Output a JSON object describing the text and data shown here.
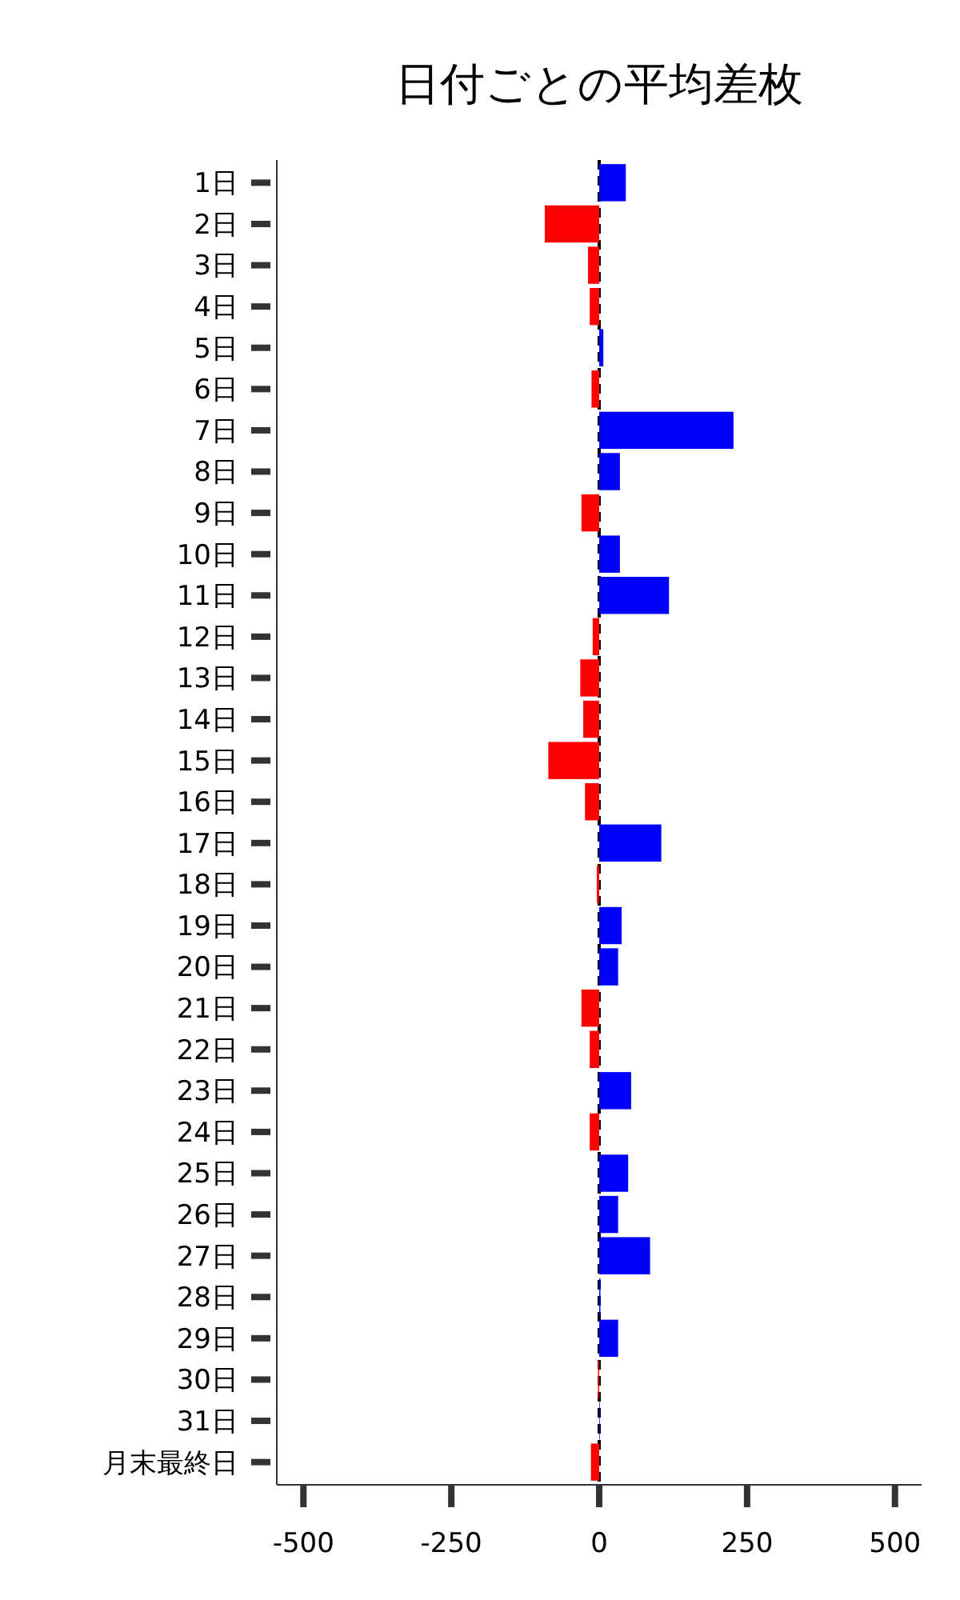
{
  "chart_data": {
    "type": "bar",
    "orientation": "horizontal",
    "title": "日付ごとの平均差枚",
    "categories": [
      "1日",
      "2日",
      "3日",
      "4日",
      "5日",
      "6日",
      "7日",
      "8日",
      "9日",
      "10日",
      "11日",
      "12日",
      "13日",
      "14日",
      "15日",
      "16日",
      "17日",
      "18日",
      "19日",
      "20日",
      "21日",
      "22日",
      "23日",
      "24日",
      "25日",
      "26日",
      "27日",
      "28日",
      "29日",
      "30日",
      "31日",
      "月末最終日"
    ],
    "values": [
      45,
      -92,
      -19,
      -16,
      7,
      -13,
      227,
      35,
      -30,
      35,
      118,
      -11,
      -32,
      -27,
      -86,
      -24,
      105,
      -4,
      38,
      32,
      -30,
      -16,
      54,
      -16,
      49,
      32,
      86,
      2,
      32,
      -2,
      1,
      -14
    ],
    "colors": [
      "#0000ff",
      "#ff0000",
      "#ff0000",
      "#ff0000",
      "#0000ff",
      "#ff0000",
      "#0000ff",
      "#0000ff",
      "#ff0000",
      "#0000ff",
      "#0000ff",
      "#ff0000",
      "#ff0000",
      "#ff0000",
      "#ff0000",
      "#ff0000",
      "#0000ff",
      "#ff0000",
      "#0000ff",
      "#0000ff",
      "#ff0000",
      "#ff0000",
      "#0000ff",
      "#ff0000",
      "#0000ff",
      "#0000ff",
      "#0000ff",
      "#0000ff",
      "#0000ff",
      "#ff0000",
      "#0000ff",
      "#ff0000"
    ],
    "xlim": [
      -545,
      545
    ],
    "xticks": [
      -500,
      -250,
      0,
      250,
      500
    ],
    "ref_lines": [
      {
        "axis": "x",
        "value": 0,
        "color": "#000000",
        "line_style": "dashed"
      }
    ],
    "grid": false
  }
}
